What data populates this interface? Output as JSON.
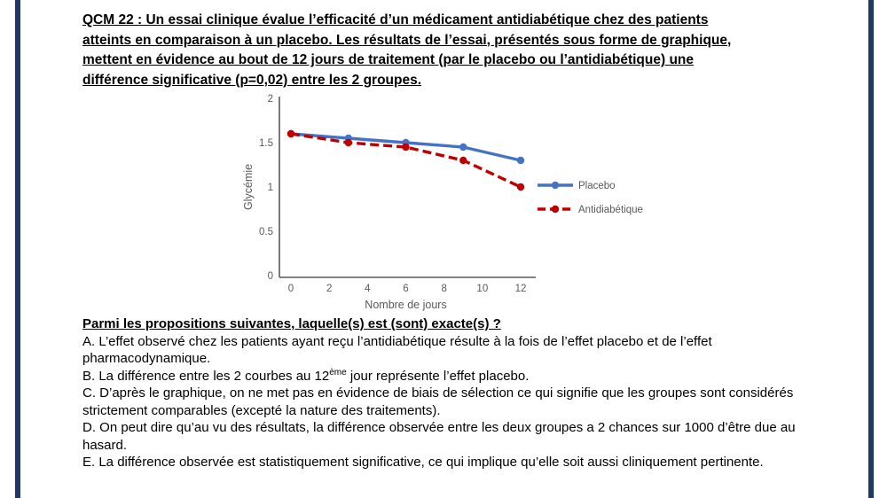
{
  "page": {
    "border_color": "#1F3864",
    "background": "#FFFFFF"
  },
  "header": {
    "lines": [
      "QCM 22 : Un essai clinique évalue l’efficacité d’un médicament antidiabétique chez des patients",
      "atteints en comparaison à un placebo. Les résultats de l’essai, présentés sous forme de graphique,",
      "mettent en évidence au bout de 12 jours de traitement (par le placebo ou l’antidiabétique) une",
      "différence significative (p=0,02) entre les 2 groupes."
    ]
  },
  "chart_data": {
    "type": "line",
    "x": [
      0,
      3,
      6,
      9,
      12
    ],
    "series": [
      {
        "name": "Placebo",
        "values": [
          1.6,
          1.55,
          1.5,
          1.45,
          1.3
        ],
        "color": "#4472C4",
        "style": "solid"
      },
      {
        "name": "Antidiabétique",
        "values": [
          1.6,
          1.5,
          1.45,
          1.3,
          1.0
        ],
        "color": "#C00000",
        "style": "dashed"
      }
    ],
    "xlabel": "Nombre de jours",
    "ylabel": "Glycémie",
    "xticks": [
      0,
      2,
      4,
      6,
      8,
      10,
      12
    ],
    "yticks": [
      0,
      0.5,
      1,
      1.5,
      2
    ],
    "xlim": [
      0,
      12
    ],
    "ylim": [
      0,
      2
    ],
    "grid": false,
    "legend_position": "right",
    "axis_color": "#595959",
    "label_color": "#595959"
  },
  "question": {
    "prompt": "Parmi les propositions suivantes, laquelle(s) est (sont) exacte(s) ?",
    "propositions": [
      {
        "segments": [
          {
            "text": "A. L’effet observé chez les patients ayant reçu l’antidiabétique résulte à la fois de l’effet placebo et de l’effet pharmacodynamique."
          }
        ]
      },
      {
        "segments": [
          {
            "text": "B. La différence entre les 2 courbes au 12"
          },
          {
            "text": "ème",
            "sup": true
          },
          {
            "text": " jour représente l’effet placebo."
          }
        ]
      },
      {
        "segments": [
          {
            "text": "C. D’après le graphique, on ne met pas en évidence de biais de sélection ce qui signifie que les groupes sont considérés strictement comparables (excepté la nature des traitements)."
          }
        ]
      },
      {
        "segments": [
          {
            "text": "D. On peut dire qu’au vu des résultats, la différence observée entre les deux groupes a 2 chances sur 1000 d’être due au hasard."
          }
        ]
      },
      {
        "segments": [
          {
            "text": "E. La différence observée est statistiquement significative, ce qui implique qu’elle soit aussi cliniquement pertinente."
          }
        ]
      }
    ]
  }
}
